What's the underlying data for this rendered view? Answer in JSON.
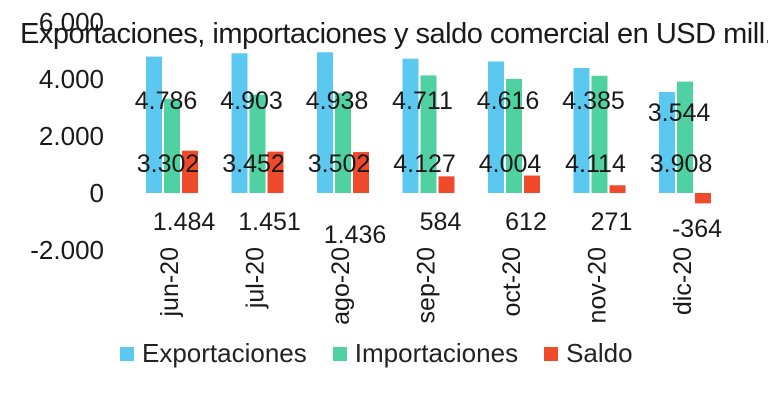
{
  "chart_data": {
    "type": "bar",
    "title": "Exportaciones, importaciones y saldo comercial en USD mill.",
    "categories": [
      "jun-20",
      "jul-20",
      "ago-20",
      "sep-20",
      "oct-20",
      "nov-20",
      "dic-20"
    ],
    "series": [
      {
        "name": "Exportaciones",
        "values": [
          4786,
          4903,
          4938,
          4711,
          4616,
          4385,
          3544
        ],
        "labels": [
          "4.786",
          "4.903",
          "4.938",
          "4.711",
          "4.616",
          "4.385",
          "3.544"
        ],
        "color": "#5bc8f0"
      },
      {
        "name": "Importaciones",
        "values": [
          3302,
          3452,
          3502,
          4127,
          4004,
          4114,
          3908
        ],
        "labels": [
          "3.302",
          "3.452",
          "3.502",
          "4.127",
          "4.004",
          "4.114",
          "3.908"
        ],
        "color": "#4fd1a1"
      },
      {
        "name": "Saldo",
        "values": [
          1484,
          1451,
          1436,
          584,
          612,
          271,
          -364
        ],
        "labels": [
          "1.484",
          "1.451",
          "1.436",
          "584",
          "612",
          "271",
          "-364"
        ],
        "color": "#f04a2c"
      }
    ],
    "yticks": [
      6000,
      4000,
      2000,
      0,
      -2000
    ],
    "ytick_labels": [
      "6.000",
      "4.000",
      "2.000",
      "0",
      "-2.000"
    ],
    "ylim": [
      -2000,
      6000
    ],
    "grid": false,
    "legend_position": "bottom"
  }
}
